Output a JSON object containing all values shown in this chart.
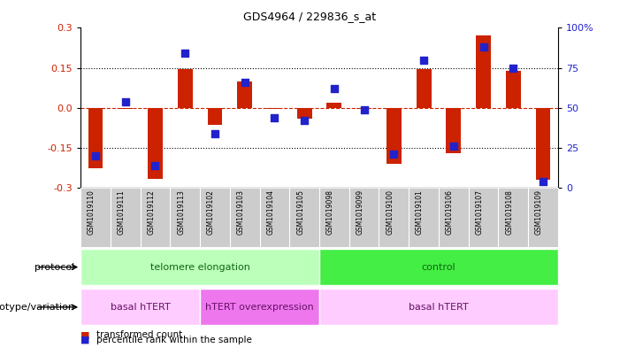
{
  "title": "GDS4964 / 229836_s_at",
  "samples": [
    "GSM1019110",
    "GSM1019111",
    "GSM1019112",
    "GSM1019113",
    "GSM1019102",
    "GSM1019103",
    "GSM1019104",
    "GSM1019105",
    "GSM1019098",
    "GSM1019099",
    "GSM1019100",
    "GSM1019101",
    "GSM1019106",
    "GSM1019107",
    "GSM1019108",
    "GSM1019109"
  ],
  "transformed_count": [
    -0.225,
    -0.005,
    -0.265,
    0.145,
    -0.065,
    0.1,
    -0.005,
    -0.04,
    0.02,
    -0.005,
    -0.21,
    0.145,
    -0.17,
    0.27,
    0.14,
    -0.27
  ],
  "percentile_rank": [
    20,
    54,
    14,
    84,
    34,
    66,
    44,
    42,
    62,
    49,
    21,
    80,
    26,
    88,
    75,
    4
  ],
  "bar_color": "#cc2200",
  "dot_color": "#2222cc",
  "zero_line_color": "#cc2200",
  "grid_color": "#000000",
  "ylim_left": [
    -0.3,
    0.3
  ],
  "ylim_right": [
    0,
    100
  ],
  "yticks_left": [
    -0.3,
    -0.15,
    0.0,
    0.15,
    0.3
  ],
  "yticks_right": [
    0,
    25,
    50,
    75,
    100
  ],
  "protocol_groups": [
    {
      "label": "telomere elongation",
      "start": 0,
      "end": 8,
      "color": "#bbffbb"
    },
    {
      "label": "control",
      "start": 8,
      "end": 16,
      "color": "#44ee44"
    }
  ],
  "genotype_groups": [
    {
      "label": "basal hTERT",
      "start": 0,
      "end": 4,
      "color": "#ffccff"
    },
    {
      "label": "hTERT overexpression",
      "start": 4,
      "end": 8,
      "color": "#ee77ee"
    },
    {
      "label": "basal hTERT",
      "start": 8,
      "end": 16,
      "color": "#ffccff"
    }
  ],
  "legend_entries": [
    {
      "label": "transformed count",
      "color": "#cc2200"
    },
    {
      "label": "percentile rank within the sample",
      "color": "#2222cc"
    }
  ],
  "bg_color": "#ffffff",
  "plot_bg": "#ffffff",
  "sample_label_bg": "#cccccc"
}
